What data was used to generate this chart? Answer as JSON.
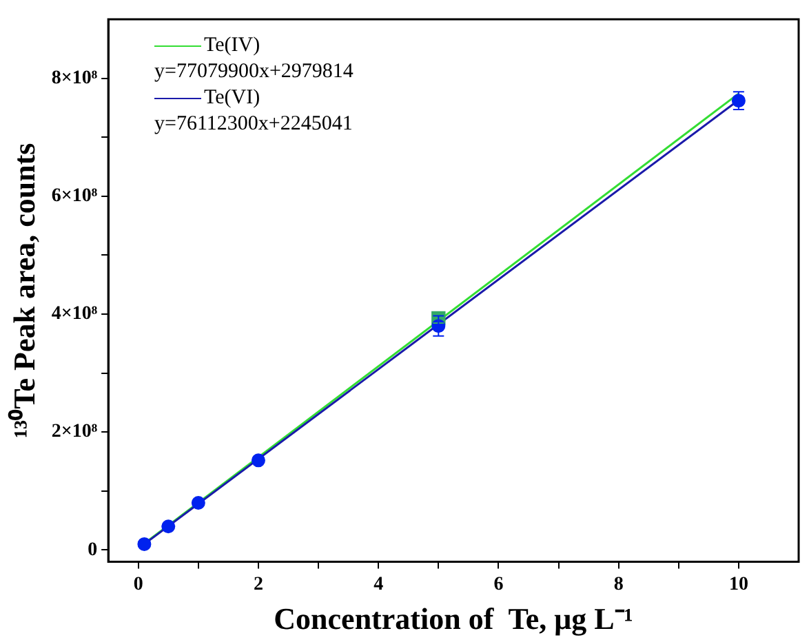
{
  "chart_data": {
    "type": "scatter",
    "xlabel": "Concentration of  Te, μg L⁻¹",
    "ylabel": "¹³⁰Te Peak area, counts",
    "xlim": [
      -0.5,
      11
    ],
    "xticks": [
      0,
      {
        "value": 1,
        "label": null
      },
      2,
      {
        "value": 3,
        "label": null
      },
      4,
      {
        "value": 5,
        "label": null
      },
      6,
      {
        "value": 7,
        "label": null
      },
      8,
      {
        "value": 9,
        "label": null
      },
      10
    ],
    "ylim": [
      -20000000,
      900000000
    ],
    "yticks": [
      {
        "value": 0,
        "label": "0"
      },
      {
        "value": 100000000,
        "label": null
      },
      {
        "value": 200000000,
        "label": "2×10⁸"
      },
      {
        "value": 300000000,
        "label": null
      },
      {
        "value": 400000000,
        "label": "4×10⁸"
      },
      {
        "value": 500000000,
        "label": null
      },
      {
        "value": 600000000,
        "label": "6×10⁸"
      },
      {
        "value": 700000000,
        "label": null
      },
      {
        "value": 800000000,
        "label": "8×10⁸"
      }
    ],
    "grid": false,
    "legend": "top left",
    "annotations": [
      "y=77079900x+2979814",
      "y=76112300x+2245041"
    ],
    "series": [
      {
        "name": "Te(IV)",
        "type": "line",
        "color": "#33dd33",
        "x": [
          0.1,
          10
        ],
        "values": [
          11000000,
          774000000
        ]
      },
      {
        "name": "Te(VI)",
        "type": "line",
        "color": "#1a1aaa",
        "x": [
          0.1,
          10
        ],
        "values": [
          10000000,
          763000000
        ]
      },
      {
        "type": "scatter",
        "color": "#33aa66",
        "marker": "square",
        "x": [
          5
        ],
        "values": [
          393000000
        ],
        "errors": [
          8000000
        ]
      },
      {
        "type": "scatter",
        "color": "#0022ee",
        "marker": "circle",
        "x": [
          0.1,
          0.5,
          1,
          2,
          5,
          10
        ],
        "values": [
          10000000,
          40000000,
          80000000,
          152000000,
          380000000,
          762000000
        ],
        "errors": [
          null,
          null,
          null,
          null,
          17000000,
          15000000
        ]
      }
    ]
  }
}
